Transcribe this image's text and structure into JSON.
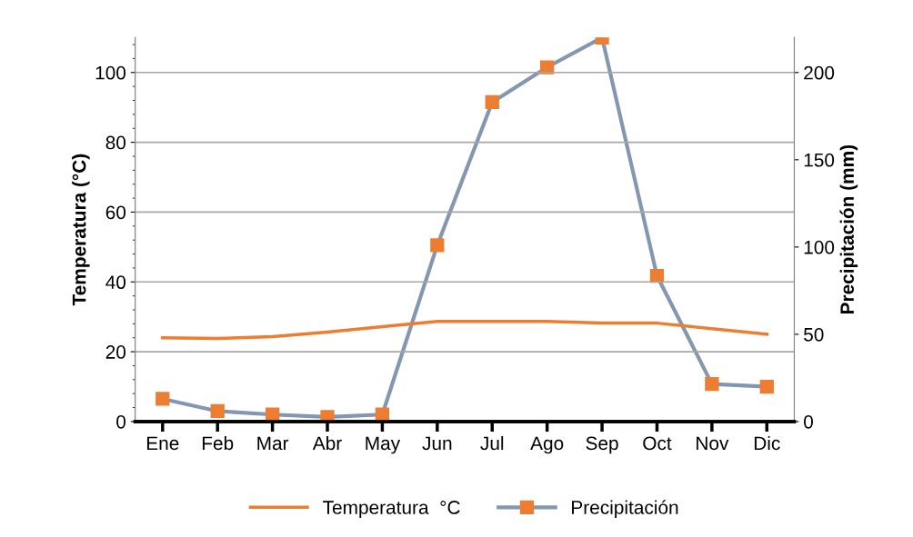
{
  "chart_data": {
    "type": "line",
    "categories": [
      "Ene",
      "Feb",
      "Mar",
      "Abr",
      "May",
      "Jun",
      "Jul",
      "Ago",
      "Sep",
      "Oct",
      "Nov",
      "Dic"
    ],
    "series": [
      {
        "name": "Temperatura  °C",
        "color": "#ed7d31",
        "marker": "none",
        "values": [
          24.0,
          23.8,
          24.3,
          25.6,
          27.2,
          28.7,
          28.7,
          28.7,
          28.2,
          28.2,
          26.6,
          25.0
        ]
      },
      {
        "name": "Precipitación",
        "color": "#8497b0",
        "marker": "square",
        "axis": "y2",
        "values": [
          13,
          6,
          4,
          2.6,
          4,
          101,
          183,
          203,
          220,
          83.5,
          21.5,
          20
        ]
      }
    ],
    "ylabel": "Temperatura (°C)",
    "y2label": "Precipitación (mm)",
    "ylim": [
      0,
      110
    ],
    "yticks": [
      0,
      20,
      40,
      60,
      80,
      100
    ],
    "y2lim": [
      0,
      220
    ],
    "y2ticks": [
      0,
      50,
      100,
      150,
      200
    ],
    "grid": "y",
    "legend": "bottom"
  }
}
